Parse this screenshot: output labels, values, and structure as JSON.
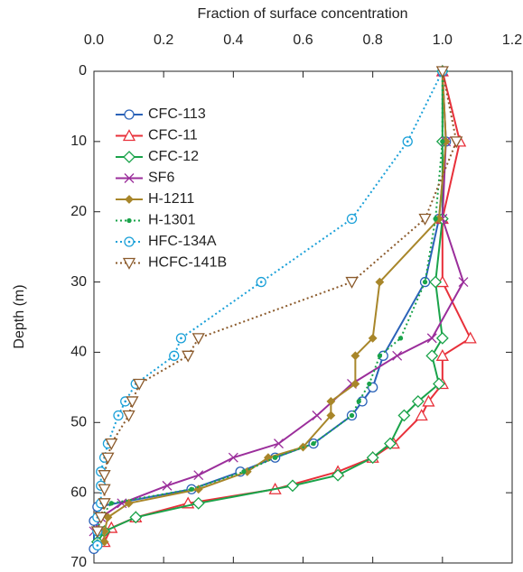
{
  "chart_data": {
    "type": "profile",
    "xlabel": "Fraction of surface concentration",
    "ylabel": "Depth (m)",
    "xlim": [
      0,
      1.2
    ],
    "ylim": [
      0,
      70
    ],
    "y_inverted": true,
    "xticks": [
      {
        "value": 0,
        "label": "0.0"
      },
      0.2,
      0.4,
      0.6,
      0.8,
      {
        "value": 1,
        "label": "1.0"
      },
      1.2
    ],
    "yticks": [
      0,
      10,
      20,
      30,
      40,
      50,
      60,
      70
    ],
    "legend": "upper left",
    "series": [
      {
        "name": "CFC-113",
        "color": "#2a62b8",
        "marker": "circle",
        "dash": "solid",
        "x": [
          1.0,
          1.01,
          0.99,
          0.95,
          0.83,
          0.8,
          0.77,
          0.74,
          0.63,
          0.52,
          0.42,
          0.28,
          0.01,
          0.0,
          0.0
        ],
        "y": [
          0,
          10,
          21,
          30,
          40.5,
          45,
          47,
          49,
          53,
          55,
          57,
          59.5,
          62,
          64,
          68
        ]
      },
      {
        "name": "CFC-11",
        "color": "#e8303a",
        "marker": "triangle",
        "dash": "solid",
        "x": [
          1.0,
          1.05,
          1.0,
          1.0,
          1.08,
          1.0,
          1.0,
          0.96,
          0.94,
          0.86,
          0.8,
          0.7,
          0.52,
          0.27,
          0.12,
          0.05,
          0.03
        ],
        "y": [
          0,
          10,
          21,
          30,
          38,
          40.5,
          44.5,
          47,
          49,
          53,
          55,
          57,
          59.5,
          61.5,
          63.5,
          65,
          67
        ]
      },
      {
        "name": "CFC-12",
        "color": "#1aa34a",
        "marker": "diamond",
        "dash": "solid",
        "x": [
          1.0,
          1.0,
          1.0,
          0.98,
          1.0,
          0.97,
          0.99,
          0.93,
          0.89,
          0.85,
          0.8,
          0.7,
          0.57,
          0.3,
          0.12,
          0.03,
          0.01
        ],
        "y": [
          0,
          10,
          21,
          30,
          38,
          40.5,
          44.5,
          47,
          49,
          53,
          55,
          57.5,
          59,
          61.5,
          63.5,
          65.5,
          67
        ]
      },
      {
        "name": "SF6",
        "color": "#9b2e9b",
        "marker": "x",
        "dash": "solid",
        "x": [
          1.0,
          1.01,
          1.0,
          1.06,
          0.97,
          0.87,
          0.74,
          0.64,
          0.53,
          0.4,
          0.3,
          0.21,
          0.08,
          0.02,
          0.0
        ],
        "y": [
          0,
          10,
          21,
          30,
          38,
          40.5,
          44.5,
          49,
          53,
          55,
          57.5,
          59,
          61.5,
          63.5,
          65.5
        ]
      },
      {
        "name": "H-1211",
        "color": "#a8862a",
        "marker": "filled-diamond",
        "dash": "solid",
        "x": [
          1.0,
          1.01,
          0.99,
          0.82,
          0.8,
          0.75,
          0.75,
          0.68,
          0.68,
          0.6,
          0.5,
          0.44,
          0.3,
          0.1,
          0.04,
          0.03,
          0.03
        ],
        "y": [
          0,
          10,
          21,
          30,
          38,
          40.5,
          44.5,
          47,
          49,
          53.5,
          55,
          57,
          59.5,
          61.5,
          63.5,
          65.5,
          67
        ]
      },
      {
        "name": "H-1301",
        "color": "#1aa34a",
        "marker": "dot",
        "dash": "dotted",
        "x": [
          1.0,
          1.0,
          0.98,
          0.95,
          0.88,
          0.82,
          0.79,
          0.76,
          0.74,
          0.63,
          0.52,
          0.43,
          0.28,
          0.05,
          0.02,
          0.01,
          0.01
        ],
        "y": [
          0,
          10,
          21,
          30,
          38,
          40.5,
          44.5,
          47,
          49,
          53,
          55,
          57,
          59.5,
          61.5,
          63.5,
          65.5,
          67
        ]
      },
      {
        "name": "HFC-134A",
        "color": "#1aa0d8",
        "marker": "circle-dot",
        "dash": "dotted",
        "x": [
          1.0,
          0.9,
          0.74,
          0.48,
          0.25,
          0.23,
          0.12,
          0.09,
          0.07,
          0.04,
          0.03,
          0.02,
          0.02,
          0.02,
          0.01,
          0.01,
          0.01
        ],
        "y": [
          0,
          10,
          21,
          30,
          38,
          40.5,
          44.5,
          47,
          49,
          53,
          55,
          57,
          59,
          61.5,
          63.5,
          65.5,
          67.5
        ]
      },
      {
        "name": "HCFC-141B",
        "color": "#8b5a2b",
        "marker": "inv-triangle",
        "dash": "dotted",
        "x": [
          1.0,
          1.04,
          0.95,
          0.74,
          0.3,
          0.27,
          0.13,
          0.11,
          0.1,
          0.05,
          0.04,
          0.03,
          0.03,
          0.03,
          0.02,
          0.01
        ],
        "y": [
          0,
          10,
          21,
          30,
          38,
          40.5,
          44.5,
          47,
          49,
          53,
          55,
          57.5,
          59.5,
          61.5,
          63.5,
          65.5
        ]
      }
    ]
  }
}
